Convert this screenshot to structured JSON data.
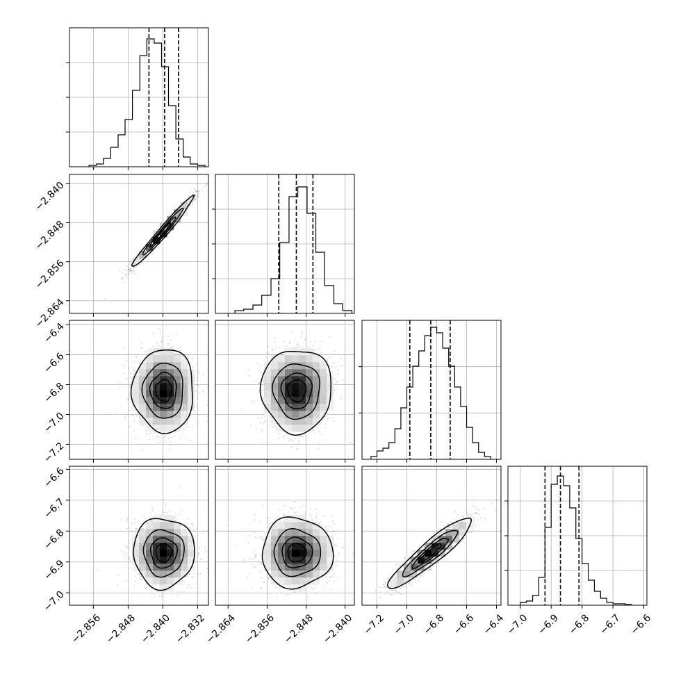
{
  "chart_data": {
    "type": "corner",
    "grid": true,
    "hist_tick_counts": [
      3,
      3,
      2,
      3
    ],
    "parameters": [
      {
        "range": [
          -2.8615,
          -2.8295
        ],
        "ticks": [
          -2.856,
          -2.848,
          -2.84,
          -2.832
        ],
        "tick_labels": [
          "−2.856",
          "−2.848",
          "−2.840",
          "−2.832"
        ],
        "quantiles": [
          -2.8432,
          -2.8396,
          -2.8364
        ],
        "hist": {
          "edges": [
            -2.857,
            -2.8553,
            -2.8537,
            -2.852,
            -2.8503,
            -2.8487,
            -2.847,
            -2.8453,
            -2.8437,
            -2.842,
            -2.8403,
            -2.8387,
            -2.837,
            -2.8353,
            -2.8337,
            -2.832,
            -2.8303
          ],
          "counts": [
            0.01,
            0.02,
            0.06,
            0.14,
            0.23,
            0.34,
            0.55,
            0.8,
            0.92,
            0.89,
            0.72,
            0.44,
            0.2,
            0.07,
            0.02,
            0.01
          ]
        }
      },
      {
        "range": [
          -2.8666,
          -2.8381
        ],
        "ticks": [
          -2.864,
          -2.856,
          -2.848,
          -2.84
        ],
        "tick_labels": [
          "−2.864",
          "−2.856",
          "−2.848",
          "−2.840"
        ],
        "quantiles": [
          -2.8536,
          -2.85,
          -2.8466
        ],
        "hist": {
          "edges": [
            -2.8626,
            -2.8608,
            -2.8589,
            -2.8571,
            -2.8552,
            -2.8534,
            -2.8515,
            -2.8497,
            -2.8478,
            -2.846,
            -2.8442,
            -2.8423,
            -2.8405,
            -2.8386
          ],
          "counts": [
            0.02,
            0.03,
            0.06,
            0.13,
            0.25,
            0.51,
            0.84,
            0.91,
            0.72,
            0.44,
            0.2,
            0.07,
            0.02
          ]
        }
      },
      {
        "range": [
          -7.3,
          -6.37
        ],
        "ticks": [
          -7.2,
          -7.0,
          -6.8,
          -6.6,
          -6.4
        ],
        "tick_labels": [
          "−7.2",
          "−7.0",
          "−6.8",
          "−6.6",
          "−6.4"
        ],
        "quantiles": [
          -6.98,
          -6.84,
          -6.71
        ],
        "hist": {
          "edges": [
            -7.24,
            -7.2,
            -7.16,
            -7.12,
            -7.08,
            -7.04,
            -7.0,
            -6.96,
            -6.92,
            -6.88,
            -6.84,
            -6.8,
            -6.76,
            -6.72,
            -6.68,
            -6.64,
            -6.6,
            -6.56,
            -6.52,
            -6.48,
            -6.44
          ],
          "counts": [
            0.02,
            0.06,
            0.08,
            0.12,
            0.22,
            0.37,
            0.52,
            0.67,
            0.78,
            0.89,
            0.95,
            0.91,
            0.8,
            0.67,
            0.52,
            0.38,
            0.23,
            0.12,
            0.05,
            0.02
          ]
        }
      },
      {
        "range": [
          -7.04,
          -6.59
        ],
        "ticks": [
          -7.0,
          -6.9,
          -6.8,
          -6.7,
          -6.6
        ],
        "tick_labels": [
          "−7.0",
          "−6.9",
          "−6.8",
          "−6.7",
          "−6.6"
        ],
        "quantiles": [
          -6.92,
          -6.87,
          -6.81
        ],
        "hist": {
          "edges": [
            -7.0,
            -6.98,
            -6.96,
            -6.94,
            -6.92,
            -6.9,
            -6.88,
            -6.86,
            -6.84,
            -6.82,
            -6.8,
            -6.78,
            -6.76,
            -6.74,
            -6.72,
            -6.7,
            -6.68,
            -6.66,
            -6.64
          ],
          "counts": [
            0.02,
            0.03,
            0.07,
            0.2,
            0.56,
            0.87,
            0.93,
            0.86,
            0.7,
            0.48,
            0.3,
            0.18,
            0.1,
            0.05,
            0.02,
            0.01,
            0.01,
            0.005
          ]
        }
      }
    ],
    "pairs": [
      {
        "x_param": 0,
        "y_param": 1,
        "mean": [
          -2.84,
          -2.8499
        ],
        "sd": [
          0.0034,
          0.0035
        ],
        "corr": 0.98
      },
      {
        "x_param": 0,
        "y_param": 2,
        "mean": [
          -2.8398,
          -6.84
        ],
        "sd": [
          0.0034,
          0.135
        ],
        "corr": 0.0
      },
      {
        "x_param": 1,
        "y_param": 2,
        "mean": [
          -2.8499,
          -6.84
        ],
        "sd": [
          0.0035,
          0.135
        ],
        "corr": 0.0
      },
      {
        "x_param": 0,
        "y_param": 3,
        "mean": [
          -2.8398,
          -6.87
        ],
        "sd": [
          0.0034,
          0.055
        ],
        "corr": 0.0
      },
      {
        "x_param": 1,
        "y_param": 3,
        "mean": [
          -2.8499,
          -6.87
        ],
        "sd": [
          0.0035,
          0.055
        ],
        "corr": 0.0
      },
      {
        "x_param": 2,
        "y_param": 3,
        "mean": [
          -6.84,
          -6.87
        ],
        "sd": [
          0.135,
          0.055
        ],
        "corr": 0.92
      }
    ]
  }
}
